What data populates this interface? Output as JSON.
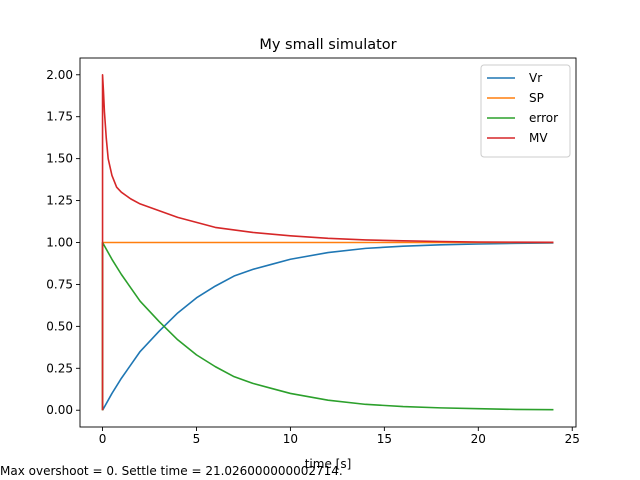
{
  "chart_data": {
    "type": "line",
    "title": "My small simulator",
    "xlabel": "time [s]",
    "ylabel": "",
    "xlim": [
      -1.2,
      25.2
    ],
    "ylim": [
      -0.1,
      2.1
    ],
    "xticks": [
      0,
      5,
      10,
      15,
      20,
      25
    ],
    "xtick_labels": [
      "0",
      "5",
      "10",
      "15",
      "20",
      "25"
    ],
    "yticks": [
      0,
      0.25,
      0.5,
      0.75,
      1.0,
      1.25,
      1.5,
      1.75,
      2.0
    ],
    "ytick_labels": [
      "0.00",
      "0.25",
      "0.50",
      "0.75",
      "1.00",
      "1.25",
      "1.50",
      "1.75",
      "2.00"
    ],
    "grid": false,
    "legend_position": "top-right",
    "series": [
      {
        "name": "Vr",
        "color": "#1f77b4",
        "x": [
          0,
          0.5,
          1,
          1.5,
          2,
          3,
          4,
          5,
          6,
          7,
          8,
          9,
          10,
          12,
          14,
          16,
          18,
          20,
          22,
          24
        ],
        "y": [
          0,
          0.1,
          0.19,
          0.27,
          0.35,
          0.47,
          0.58,
          0.67,
          0.74,
          0.8,
          0.84,
          0.87,
          0.9,
          0.94,
          0.965,
          0.978,
          0.986,
          0.991,
          0.995,
          0.997
        ]
      },
      {
        "name": "SP",
        "color": "#ff7f0e",
        "x": [
          0,
          0,
          24
        ],
        "y": [
          0,
          1.0,
          1.0
        ]
      },
      {
        "name": "error",
        "color": "#2ca02c",
        "x": [
          0,
          0,
          0.5,
          1,
          1.5,
          2,
          3,
          4,
          5,
          6,
          7,
          8,
          9,
          10,
          12,
          14,
          16,
          18,
          20,
          22,
          24
        ],
        "y": [
          0,
          1.0,
          0.9,
          0.81,
          0.73,
          0.65,
          0.53,
          0.42,
          0.33,
          0.26,
          0.2,
          0.16,
          0.13,
          0.1,
          0.06,
          0.035,
          0.022,
          0.014,
          0.009,
          0.005,
          0.003
        ]
      },
      {
        "name": "MV",
        "color": "#d62728",
        "x": [
          0,
          0,
          0.05,
          0.1,
          0.2,
          0.3,
          0.5,
          0.75,
          1,
          1.5,
          2,
          3,
          4,
          5,
          6,
          8,
          10,
          12,
          14,
          16,
          18,
          20,
          22,
          24
        ],
        "y": [
          0,
          2.0,
          1.9,
          1.78,
          1.62,
          1.5,
          1.4,
          1.33,
          1.3,
          1.26,
          1.23,
          1.19,
          1.15,
          1.12,
          1.09,
          1.06,
          1.04,
          1.025,
          1.015,
          1.01,
          1.006,
          1.003,
          1.002,
          1.001
        ]
      }
    ]
  },
  "caption": "Max overshoot = 0. Settle time = 21.026000000002714."
}
